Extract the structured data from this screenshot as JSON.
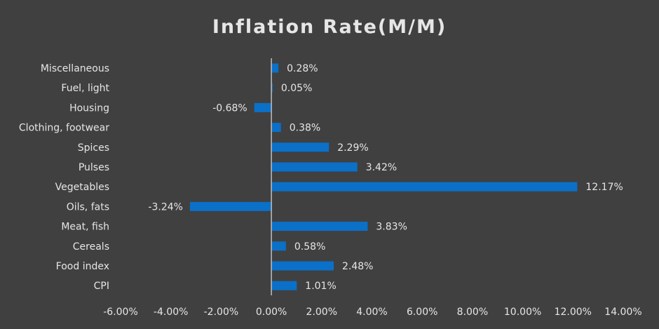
{
  "chart_data": {
    "type": "bar",
    "orientation": "horizontal",
    "title": "Inflation Rate(M/M)",
    "categories": [
      "Miscellaneous",
      "Fuel, light",
      "Housing",
      "Clothing, footwear",
      "Spices",
      "Pulses",
      "Vegetables",
      "Oils, fats",
      "Meat, fish",
      "Cereals",
      "Food index",
      "CPI"
    ],
    "values": [
      0.28,
      0.05,
      -0.68,
      0.38,
      2.29,
      3.42,
      12.17,
      -3.24,
      3.83,
      0.58,
      2.48,
      1.01
    ],
    "data_labels": [
      "0.28%",
      "0.05%",
      "-0.68%",
      "0.38%",
      "2.29%",
      "3.42%",
      "12.17%",
      "-3.24%",
      "3.83%",
      "0.58%",
      "2.48%",
      "1.01%"
    ],
    "xlim": [
      -6,
      14
    ],
    "x_ticks": [
      -6,
      -4,
      -2,
      0,
      2,
      4,
      6,
      8,
      10,
      12,
      14
    ],
    "x_tick_labels": [
      "-6.00%",
      "-4.00%",
      "-2.00%",
      "0.00%",
      "2.00%",
      "4.00%",
      "6.00%",
      "8.00%",
      "10.00%",
      "12.00%",
      "14.00%"
    ],
    "grid": false,
    "legend": "none",
    "colors": {
      "bar": "#0a70c8",
      "background": "#404040",
      "text": "#e6e6e6",
      "axis": "#bfbfbf"
    }
  }
}
